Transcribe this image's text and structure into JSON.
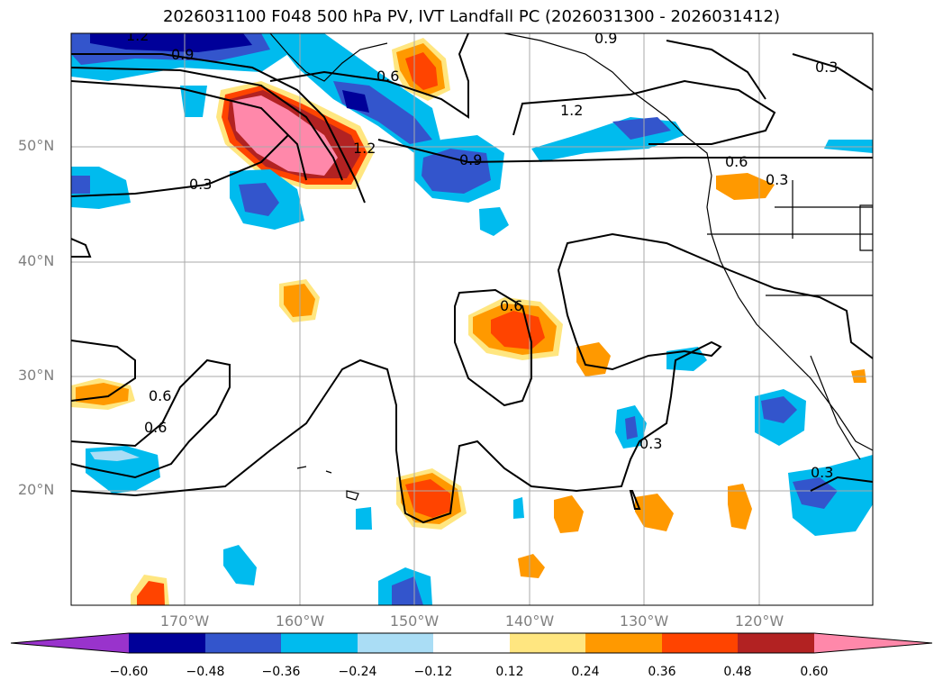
{
  "title": "2026031100 F048 500 hPa PV, IVT Landfall PC (2026031300 - 2026031412)",
  "lat_labels": [
    "50°N",
    "40°N",
    "30°N",
    "20°N"
  ],
  "lon_labels": [
    "170°W",
    "160°W",
    "150°W",
    "140°W",
    "130°W",
    "120°W"
  ],
  "contour_labels": [
    "1.2",
    "0.9",
    "0.6",
    "0.3",
    "1.2",
    "0.6",
    "0.9",
    "1.2",
    "0.6",
    "0.3",
    "0.3",
    "0.6",
    "0.6",
    "0.9",
    "0.3",
    "0.3"
  ],
  "colorbar": {
    "ticks": [
      "−0.60",
      "−0.48",
      "−0.36",
      "−0.24",
      "−0.12",
      "0.12",
      "0.24",
      "0.36",
      "0.48",
      "0.60"
    ],
    "colors": [
      "#9933cc",
      "#000099",
      "#3355cc",
      "#00bbee",
      "#aaddf5",
      "#ffffff",
      "#ffe680",
      "#ff9900",
      "#ff4400",
      "#b22222",
      "#ff88aa"
    ]
  }
}
